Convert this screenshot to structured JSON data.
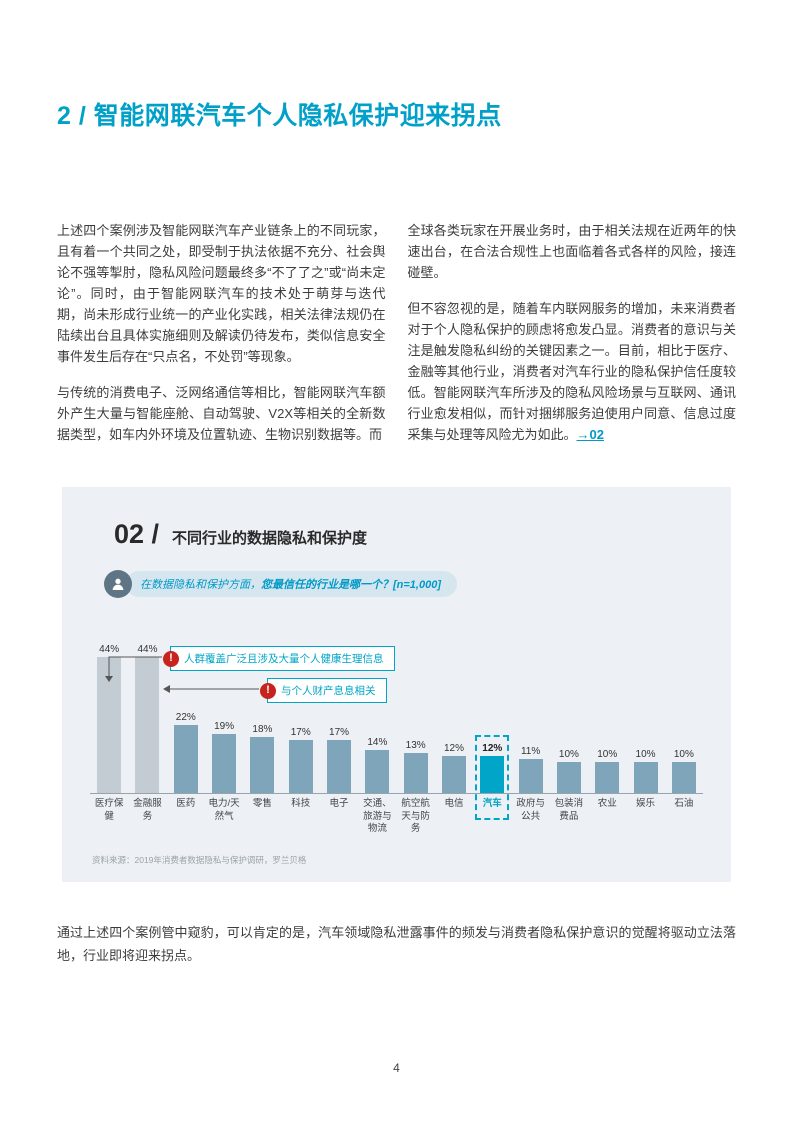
{
  "page_number": "4",
  "title": "2 / 智能网联汽车个人隐私保护迎来拐点",
  "columns": {
    "left_p1": "上述四个案例涉及智能网联汽车产业链条上的不同玩家，且有着一个共同之处，即受制于执法依据不充分、社会舆论不强等掣肘，隐私风险问题最终多“不了了之”或“尚未定论”。同时，由于智能网联汽车的技术处于萌芽与迭代期，尚未形成行业统一的产业化实践，相关法律法规仍在陆续出台且具体实施细则及解读仍待发布，类似信息安全事件发生后存在“只点名，不处罚”等现象。",
    "left_p2": "与传统的消费电子、泛网络通信等相比，智能网联汽车额外产生大量与智能座舱、自动驾驶、V2X等相关的全新数据类型，如车内外环境及位置轨迹、生物识别数据等。而",
    "right_p1": "全球各类玩家在开展业务时，由于相关法规在近两年的快速出台，在合法合规性上也面临着各式各样的风险，接连碰壁。",
    "right_p2": "但不容忽视的是，随着车内联网服务的增加，未来消费者对于个人隐私保护的顾虑将愈发凸显。消费者的意识与关注是触发隐私纠纷的关键因素之一。目前，相比于医疗、金融等其他行业，消费者对汽车行业的隐私保护信任度较低。智能网联汽车所涉及的隐私风险场景与互联网、通讯行业愈发相似，而针对捆绑服务迫使用户同意、信息过度采集与处理等风险尤为如此。",
    "right_p2_link": "→02"
  },
  "figure": {
    "label": "02 /",
    "title": "不同行业的数据隐私和保护度",
    "question_pre": "在数据隐私和保护方面，",
    "question_bold": "您最信任的行业是哪一个？[n=1,000]",
    "annotations": [
      "人群覆盖广泛且涉及大量个人健康生理信息",
      "与个人财产息息相关"
    ],
    "source": "资料来源：2019年消费者数据隐私与保护调研，罗兰贝格"
  },
  "chart_data": {
    "type": "bar",
    "title": "不同行业的数据隐私和保护度",
    "categories": [
      "医疗保健",
      "金融服务",
      "医药",
      "电力/天然气",
      "零售",
      "科技",
      "电子",
      "交通、旅游与物流",
      "航空航天与防务",
      "电信",
      "汽车",
      "政府与公共",
      "包装消费品",
      "农业",
      "娱乐",
      "石油"
    ],
    "values": [
      44,
      44,
      22,
      19,
      18,
      17,
      17,
      14,
      13,
      12,
      12,
      11,
      10,
      10,
      10,
      10
    ],
    "unit": "%",
    "highlight_category": "汽车",
    "highlight_index": 10,
    "muted_indices": [
      0,
      1
    ],
    "ylim": [
      0,
      50
    ],
    "grid": false,
    "legend": false,
    "colors": {
      "normal": "#7fa5ba",
      "muted": "#c3ccd2",
      "highlight": "#00a5c8",
      "accent": "#00a0c8"
    }
  },
  "closing": "通过上述四个案例管中窥豹，可以肯定的是，汽车领域隐私泄露事件的频发与消费者隐私保护意识的觉醒将驱动立法落地，行业即将迎来拐点。"
}
